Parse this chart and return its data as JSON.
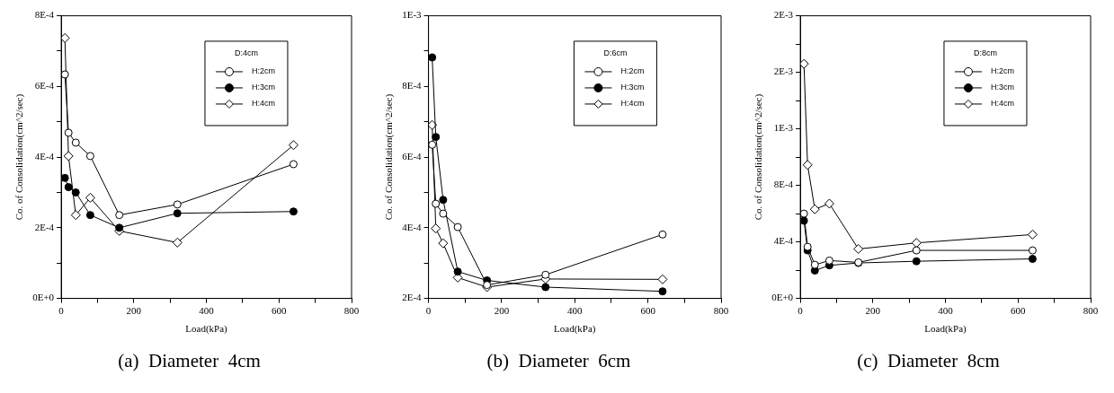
{
  "chart_data": [
    {
      "type": "line",
      "title": "(a)  Diameter  4cm",
      "xlabel": "Load(kPa)",
      "ylabel": "Co. of Consolidation(cm^2/sec)",
      "legend_title": "D:4cm",
      "legend": "top right",
      "grid": false,
      "line_style": "solid",
      "x": [
        10,
        20,
        40,
        80,
        160,
        320,
        640
      ],
      "xlim": [
        0,
        800
      ],
      "xticks": [
        0,
        {
          "value": 100,
          "label": null
        },
        200,
        {
          "value": 300,
          "label": null
        },
        400,
        {
          "value": 500,
          "label": null
        },
        600,
        {
          "value": 700,
          "label": null
        },
        800
      ],
      "ylim": [
        0,
        0.0008
      ],
      "yticks": [
        {
          "value": 0,
          "label": "0E+0"
        },
        {
          "value": 0.0001,
          "label": null
        },
        {
          "value": 0.0002,
          "label": "2E-4"
        },
        {
          "value": 0.0003,
          "label": null
        },
        {
          "value": 0.0004,
          "label": "4E-4"
        },
        {
          "value": 0.0005,
          "label": null
        },
        {
          "value": 0.0006,
          "label": "6E-4"
        },
        {
          "value": 0.0007,
          "label": null
        },
        {
          "value": 0.0008,
          "label": "8E-4"
        }
      ],
      "series": [
        {
          "name": "H:2cm",
          "color": "#000000",
          "colors": [
            "#ffffff",
            "#ffffff",
            "#ffffff",
            "#ffffff",
            "#ffffff",
            "#ffffff",
            "#ffffff"
          ],
          "marker": "circle",
          "values": [
            0.000634,
            0.000469,
            0.000441,
            0.000403,
            0.000236,
            0.000266,
            0.00038
          ]
        },
        {
          "name": "H:3cm",
          "color": "#000000",
          "marker": "circle",
          "values": [
            0.000341,
            0.000315,
            0.0003,
            0.000236,
            0.0002,
            0.000241,
            0.000246
          ]
        },
        {
          "name": "H:4cm",
          "color": "#000000",
          "colors": [
            "#ffffff",
            "#ffffff",
            "#ffffff",
            "#ffffff",
            "#ffffff",
            "#ffffff",
            "#ffffff"
          ],
          "marker": "diamond",
          "values": [
            0.000737,
            0.000403,
            0.000236,
            0.000285,
            0.000191,
            0.000158,
            0.000434
          ]
        }
      ]
    },
    {
      "type": "line",
      "title": "(b)  Diameter  6cm",
      "xlabel": "Load(kPa)",
      "ylabel": "Co. of Consolidation(cm^2/sec)",
      "legend_title": "D:6cm",
      "legend": "top right",
      "grid": false,
      "line_style": "solid",
      "x": [
        10,
        20,
        40,
        80,
        160,
        320,
        640
      ],
      "xlim": [
        0,
        800
      ],
      "xticks": [
        0,
        {
          "value": 100,
          "label": null
        },
        200,
        {
          "value": 300,
          "label": null
        },
        400,
        {
          "value": 500,
          "label": null
        },
        600,
        {
          "value": 700,
          "label": null
        },
        800
      ],
      "ylim": [
        0.0002,
        0.001
      ],
      "yticks": [
        {
          "value": 0.0002,
          "label": "2E-4"
        },
        {
          "value": 0.0003,
          "label": null
        },
        {
          "value": 0.0004,
          "label": "4E-4"
        },
        {
          "value": 0.0005,
          "label": null
        },
        {
          "value": 0.0006,
          "label": "6E-4"
        },
        {
          "value": 0.0007,
          "label": null
        },
        {
          "value": 0.0008,
          "label": "8E-4"
        },
        {
          "value": 0.0009,
          "label": null
        },
        {
          "value": 0.001,
          "label": "1E-3"
        }
      ],
      "series": [
        {
          "name": "H:2cm",
          "color": "#000000",
          "colors": [
            "#ffffff",
            "#ffffff",
            "#ffffff",
            "#ffffff",
            "#ffffff",
            "#ffffff",
            "#ffffff"
          ],
          "marker": "circle",
          "values": [
            0.000635,
            0.000468,
            0.00044,
            0.000402,
            0.000238,
            0.000267,
            0.000381
          ]
        },
        {
          "name": "H:3cm",
          "color": "#000000",
          "marker": "circle",
          "values": [
            0.000882,
            0.000657,
            0.000479,
            0.000276,
            0.000251,
            0.000232,
            0.00022
          ]
        },
        {
          "name": "H:4cm",
          "color": "#000000",
          "colors": [
            "#ffffff",
            "#ffffff",
            "#ffffff",
            "#ffffff",
            "#ffffff",
            "#ffffff",
            "#ffffff"
          ],
          "marker": "diamond",
          "values": [
            0.000691,
            0.000398,
            0.000356,
            0.000259,
            0.000232,
            0.000255,
            0.000254
          ]
        }
      ]
    },
    {
      "type": "line",
      "title": "(c)  Diameter  8cm",
      "xlabel": "Load(kPa)",
      "ylabel": "Co. of Consolidation(cm^2/sec)",
      "legend_title": "D:8cm",
      "legend": "top right",
      "grid": false,
      "line_style": "solid",
      "x": [
        10,
        20,
        40,
        80,
        160,
        320,
        640
      ],
      "xlim": [
        0,
        800
      ],
      "xticks": [
        0,
        {
          "value": 100,
          "label": null
        },
        200,
        {
          "value": 300,
          "label": null
        },
        400,
        {
          "value": 500,
          "label": null
        },
        600,
        {
          "value": 700,
          "label": null
        },
        800
      ],
      "ylim": [
        0,
        0.002
      ],
      "yticks": [
        {
          "value": 0,
          "label": "0E+0"
        },
        {
          "value": 0.0002,
          "label": null
        },
        {
          "value": 0.0004,
          "label": "4E-4"
        },
        {
          "value": 0.0006,
          "label": null
        },
        {
          "value": 0.0008,
          "label": "8E-4"
        },
        {
          "value": 0.001,
          "label": null
        },
        {
          "value": 0.0012,
          "label": "1E-3"
        },
        {
          "value": 0.0014,
          "label": null
        },
        {
          "value": 0.0016,
          "label": "2E-3"
        },
        {
          "value": 0.0018,
          "label": null
        },
        {
          "value": 0.002,
          "label": "2E-3"
        }
      ],
      "series": [
        {
          "name": "H:2cm",
          "color": "#000000",
          "colors": [
            "#ffffff",
            "#ffffff",
            "#ffffff",
            "#ffffff",
            "#ffffff",
            "#ffffff",
            "#ffffff"
          ],
          "marker": "circle",
          "values": [
            0.0006,
            0.000365,
            0.000238,
            0.000268,
            0.000255,
            0.00034,
            0.00034
          ]
        },
        {
          "name": "H:3cm",
          "color": "#000000",
          "marker": "circle",
          "values": [
            0.00055,
            0.00034,
            0.000197,
            0.000234,
            0.000251,
            0.000263,
            0.00028
          ]
        },
        {
          "name": "H:4cm",
          "color": "#000000",
          "colors": [
            "#ffffff",
            "#ffffff",
            "#ffffff",
            "#ffffff",
            "#ffffff",
            "#ffffff",
            "#ffffff"
          ],
          "marker": "diamond",
          "values": [
            0.00166,
            0.000945,
            0.000631,
            0.000671,
            0.00035,
            0.000393,
            0.000452
          ]
        }
      ]
    }
  ]
}
